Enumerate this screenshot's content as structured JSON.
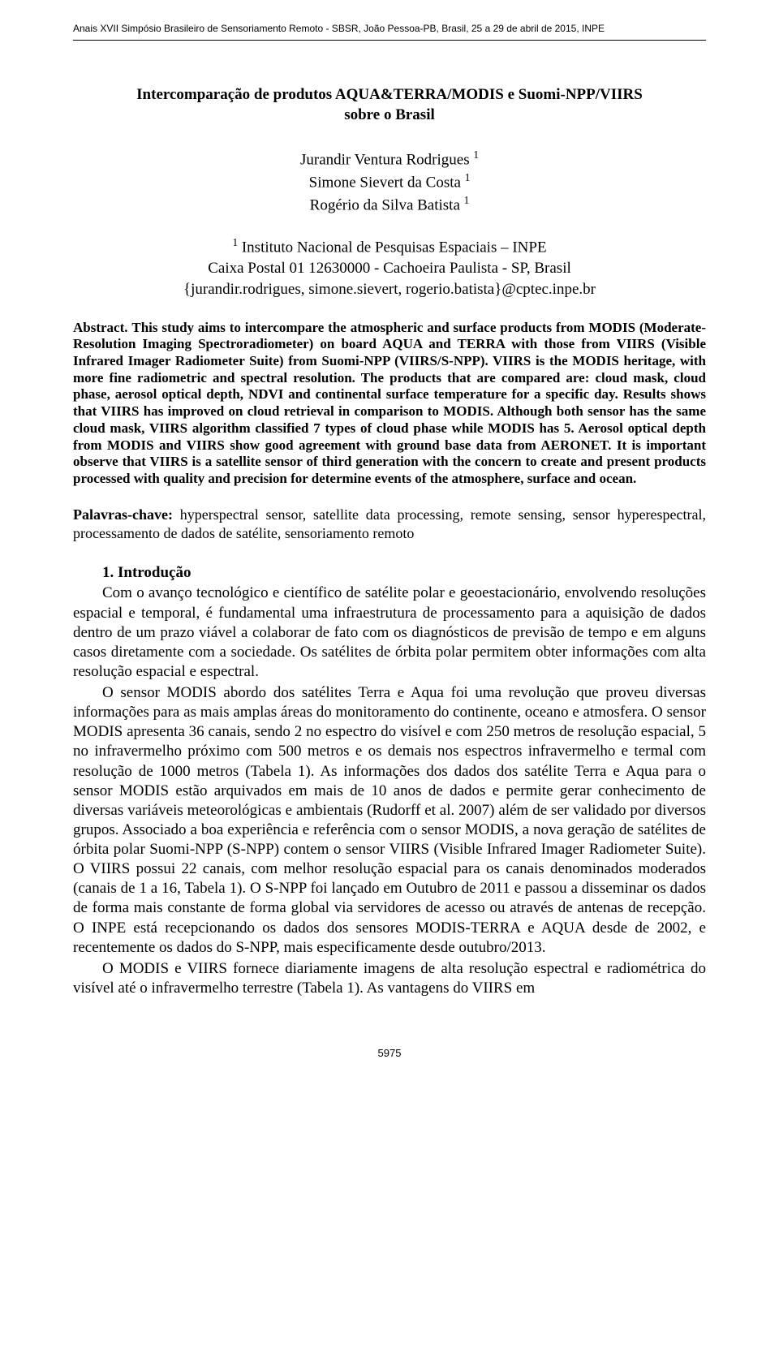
{
  "colors": {
    "background": "#ffffff",
    "text": "#000000",
    "rule": "#000000"
  },
  "typography": {
    "body_family": "Times New Roman",
    "header_family": "Arial",
    "title_size_pt": 12,
    "body_size_pt": 12,
    "abstract_size_pt": 11,
    "header_size_pt": 8
  },
  "header": {
    "conference_line": "Anais XVII Simpósio Brasileiro de Sensoriamento Remoto - SBSR, João Pessoa-PB, Brasil, 25 a 29 de abril de 2015, INPE"
  },
  "title": {
    "line1": "Intercomparação de produtos AQUA&TERRA/MODIS e Suomi-NPP/VIIRS",
    "line2": "sobre o Brasil"
  },
  "authors": {
    "a1": "Jurandir Ventura Rodrigues",
    "a2": "Simone Sievert da Costa",
    "a3": "Rogério da Silva Batista",
    "sup": "1"
  },
  "affiliation": {
    "sup": "1",
    "name": "Instituto Nacional de Pesquisas Espaciais – INPE",
    "address": "Caixa Postal 01 12630000 - Cachoeira Paulista - SP, Brasil",
    "emails": "{jurandir.rodrigues, simone.sievert, rogerio.batista}@cptec.inpe.br"
  },
  "abstract": {
    "label": "Abstract.",
    "text": "This study aims to intercompare the atmospheric and surface products from MODIS (Moderate-Resolution Imaging Spectroradiometer) on board AQUA and TERRA with those from VIIRS (Visible Infrared Imager Radiometer Suite) from Suomi-NPP (VIIRS/S-NPP). VIIRS is the MODIS heritage, with more fine radiometric and spectral resolution. The products that are compared are: cloud mask, cloud phase, aerosol optical depth, NDVI and continental surface temperature for a specific day. Results shows that VIIRS has improved on cloud retrieval in comparison to MODIS. Although both sensor has the same cloud mask, VIIRS algorithm classified 7 types of cloud phase while MODIS has 5. Aerosol optical depth from MODIS and VIIRS show good agreement with ground base data from AERONET. It is important observe that VIIRS is a satellite sensor of third generation with the concern to create and present products processed with quality and precision for determine events of the atmosphere, surface and ocean."
  },
  "keywords": {
    "label": "Palavras-chave:",
    "text": "hyperspectral sensor, satellite data processing, remote sensing, sensor hyperespectral, processamento de dados de satélite, sensoriamento remoto"
  },
  "section1": {
    "heading": "1. Introdução",
    "p1": "Com o avanço tecnológico e científico de satélite polar e geoestacionário, envolvendo resoluções espacial e temporal, é fundamental uma infraestrutura de processamento para a aquisição de dados dentro de um prazo viável a colaborar de fato com os diagnósticos de previsão de tempo e em alguns casos diretamente com a sociedade. Os satélites de órbita polar permitem obter informações com alta resolução espacial e espectral.",
    "p2": "O sensor MODIS abordo dos satélites Terra e Aqua foi uma revolução que proveu diversas informações para as mais amplas áreas do monitoramento do continente, oceano e atmosfera. O sensor MODIS apresenta 36 canais, sendo 2 no espectro do visível e com 250 metros de resolução espacial, 5 no infravermelho próximo com 500 metros e os demais nos espectros infravermelho e termal com resolução de 1000 metros (Tabela 1). As informações dos dados dos satélite Terra e Aqua para o sensor MODIS estão arquivados em mais de 10 anos de dados e permite gerar conhecimento de diversas variáveis meteorológicas e ambientais (Rudorff et al. 2007) além de ser validado por diversos grupos. Associado a boa experiência e referência com o sensor MODIS, a nova geração de satélites de órbita polar Suomi-NPP (S-NPP) contem o sensor VIIRS (Visible Infrared Imager Radiometer Suite). O VIIRS possui 22 canais, com melhor resolução espacial para os canais denominados moderados (canais de 1 a 16, Tabela 1). O S-NPP foi lançado em Outubro de 2011 e passou a disseminar os dados de forma mais constante de forma global via servidores de acesso ou através de antenas de recepção. O INPE está recepcionando os dados dos sensores MODIS-TERRA e AQUA desde de 2002, e recentemente os dados do S-NPP, mais especificamente desde outubro/2013.",
    "p3": "O MODIS e VIIRS fornece diariamente imagens de alta resolução espectral e radiométrica do visível até o infravermelho terrestre (Tabela 1). As vantagens do VIIRS em"
  },
  "page_number": "5975"
}
